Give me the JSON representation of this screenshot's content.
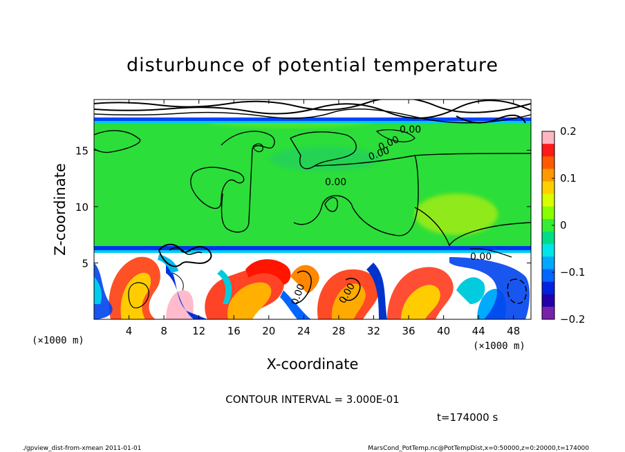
{
  "chart_data": {
    "type": "heatmap",
    "title": "disturbunce of potential temperature",
    "xlabel": "X-coordinate",
    "ylabel": "Z-coordinate",
    "x_unit": "(×1000 m)",
    "y_unit": "(×1000 m)",
    "xlim": [
      0,
      50
    ],
    "ylim": [
      0,
      19.5
    ],
    "x_ticks": [
      4,
      8,
      12,
      16,
      20,
      24,
      28,
      32,
      36,
      40,
      44,
      48
    ],
    "y_ticks": [
      5,
      10,
      15
    ],
    "colorbar": {
      "range": [
        -0.2,
        0.2
      ],
      "ticks": [
        "0.2",
        "0.1",
        "0",
        "−0.1",
        "−0.2"
      ],
      "tick_values": [
        0.2,
        0.1,
        0,
        -0.1,
        -0.2
      ],
      "colors": [
        "#ffb6c1",
        "#ff1a1a",
        "#ff5a00",
        "#ff9900",
        "#ffd000",
        "#d8ff00",
        "#88ff00",
        "#33ee33",
        "#00dd88",
        "#00e6e6",
        "#00a8ff",
        "#0066ff",
        "#0022dd",
        "#2200aa",
        "#7722aa"
      ]
    },
    "contour_labels": [
      "0.00",
      "0.00",
      "0.00",
      "0.00",
      "0.00",
      "0.00",
      "0.00"
    ],
    "contour_interval_text": "CONTOUR INTERVAL = 3.000E-01",
    "time_text": "t=174000 s"
  },
  "footer": {
    "left": "./gpview_dist-from-xmean  2011-01-01",
    "right": "MarsCond_PotTemp.nc@PotTempDist,x=0:50000,z=0:20000,t=174000"
  }
}
